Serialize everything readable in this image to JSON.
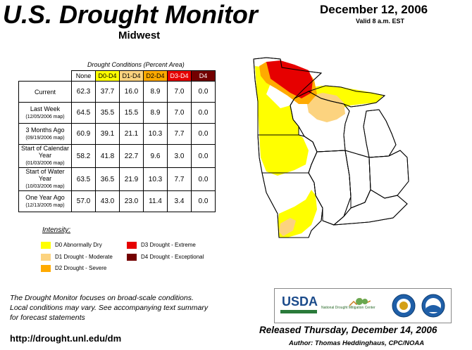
{
  "header": {
    "title": "U.S. Drought Monitor",
    "region": "Midwest",
    "date": "December 12, 2006",
    "valid": "Valid 8 a.m. EST"
  },
  "table": {
    "caption": "Drought Conditions (Percent Area)",
    "columns": [
      "None",
      "D0-D4",
      "D1-D4",
      "D2-D4",
      "D3-D4",
      "D4"
    ],
    "column_colors": [
      "#ffffff",
      "#ffff00",
      "#fcd37f",
      "#ffaa00",
      "#e60000",
      "#730000"
    ],
    "rows": [
      {
        "label": "Current",
        "sub": "",
        "values": [
          "62.3",
          "37.7",
          "16.0",
          "8.9",
          "7.0",
          "0.0"
        ]
      },
      {
        "label": "Last Week",
        "sub": "(12/05/2006 map)",
        "values": [
          "64.5",
          "35.5",
          "15.5",
          "8.9",
          "7.0",
          "0.0"
        ]
      },
      {
        "label": "3 Months Ago",
        "sub": "(09/19/2006 map)",
        "values": [
          "60.9",
          "39.1",
          "21.1",
          "10.3",
          "7.7",
          "0.0"
        ]
      },
      {
        "label": "Start of Calendar Year",
        "sub": "(01/03/2006 map)",
        "values": [
          "58.2",
          "41.8",
          "22.7",
          "9.6",
          "3.0",
          "0.0"
        ]
      },
      {
        "label": "Start of Water Year",
        "sub": "(10/03/2006 map)",
        "values": [
          "63.5",
          "36.5",
          "21.9",
          "10.3",
          "7.7",
          "0.0"
        ]
      },
      {
        "label": "One Year Ago",
        "sub": "(12/13/2005 map)",
        "values": [
          "57.0",
          "43.0",
          "23.0",
          "11.4",
          "3.4",
          "0.0"
        ]
      }
    ]
  },
  "legend": {
    "title": "Intensity:",
    "items": [
      {
        "label": "D0 Abnormally Dry",
        "color": "#ffff00"
      },
      {
        "label": "D1 Drought - Moderate",
        "color": "#fcd37f"
      },
      {
        "label": "D2 Drought - Severe",
        "color": "#ffaa00"
      },
      {
        "label": "D3 Drought - Extreme",
        "color": "#e60000"
      },
      {
        "label": "D4 Drought - Exceptional",
        "color": "#730000"
      }
    ]
  },
  "footer": {
    "note_lines": [
      "The Drought Monitor focuses on broad-scale conditions.",
      "Local conditions may vary. See accompanying text summary",
      "for forecast statements"
    ],
    "url": "http://drought.unl.edu/dm",
    "released": "Released Thursday, December 14, 2006",
    "author": "Author: Thomas Heddinghaus, CPC/NOAA"
  },
  "logos": {
    "usda": "USDA",
    "ndmc": "National Drought Mitigation Center"
  }
}
